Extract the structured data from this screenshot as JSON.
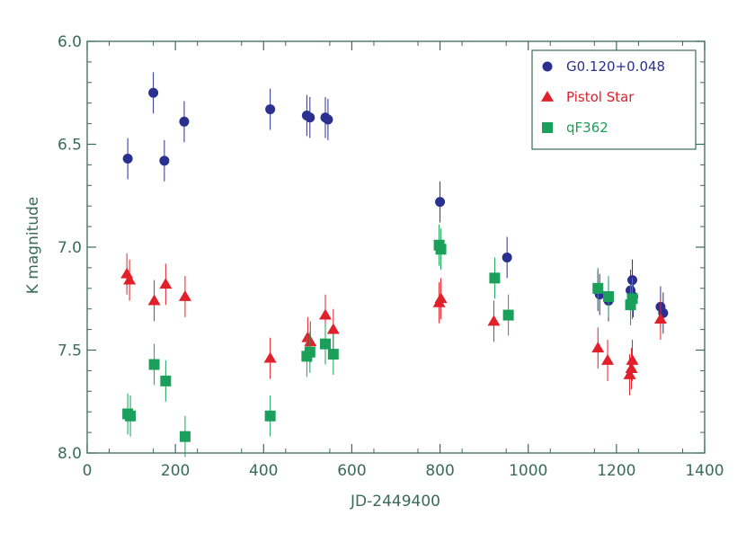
{
  "chart_data": {
    "type": "scatter",
    "xlabel": "JD-2449400",
    "ylabel": "K magnitude",
    "xlim": [
      0,
      1400
    ],
    "ylim": [
      6.0,
      8.0
    ],
    "y_inverted": true,
    "x_ticks": [
      0,
      200,
      400,
      600,
      800,
      1000,
      1200,
      1400
    ],
    "y_ticks": [
      "6.0",
      "6.5",
      "7.0",
      "7.5",
      "8.0"
    ],
    "legend_position": "top-right",
    "axis_color": "#3a6b5a",
    "series": [
      {
        "name": "G0.120+0.048",
        "marker": "circle",
        "color": "#2b2f8f",
        "points": [
          {
            "x": 92,
            "y": 6.57,
            "err": 0.1
          },
          {
            "x": 150,
            "y": 6.25,
            "err": 0.1
          },
          {
            "x": 175,
            "y": 6.58,
            "err": 0.1
          },
          {
            "x": 220,
            "y": 6.39,
            "err": 0.1
          },
          {
            "x": 415,
            "y": 6.33,
            "err": 0.1
          },
          {
            "x": 498,
            "y": 6.36,
            "err": 0.1
          },
          {
            "x": 505,
            "y": 6.37,
            "err": 0.1
          },
          {
            "x": 540,
            "y": 6.37,
            "err": 0.1
          },
          {
            "x": 546,
            "y": 6.38,
            "err": 0.1
          },
          {
            "x": 800,
            "y": 6.78,
            "err": 0.1
          },
          {
            "x": 952,
            "y": 7.05,
            "err": 0.1
          },
          {
            "x": 1158,
            "y": 7.21,
            "err": 0.1
          },
          {
            "x": 1162,
            "y": 7.23,
            "err": 0.1
          },
          {
            "x": 1182,
            "y": 7.26,
            "err": 0.1
          },
          {
            "x": 1232,
            "y": 7.21,
            "err": 0.1
          },
          {
            "x": 1236,
            "y": 7.16,
            "err": 0.1
          },
          {
            "x": 1238,
            "y": 7.24,
            "err": 0.1
          },
          {
            "x": 1300,
            "y": 7.29,
            "err": 0.1
          },
          {
            "x": 1306,
            "y": 7.32,
            "err": 0.1
          }
        ]
      },
      {
        "name": "Pistol Star",
        "marker": "triangle",
        "color": "#e0202a",
        "points": [
          {
            "x": 90,
            "y": 7.13,
            "err": 0.1
          },
          {
            "x": 96,
            "y": 7.16,
            "err": 0.1
          },
          {
            "x": 152,
            "y": 7.26,
            "err": 0.1
          },
          {
            "x": 178,
            "y": 7.18,
            "err": 0.1
          },
          {
            "x": 222,
            "y": 7.24,
            "err": 0.1
          },
          {
            "x": 415,
            "y": 7.54,
            "err": 0.1
          },
          {
            "x": 500,
            "y": 7.44,
            "err": 0.1
          },
          {
            "x": 506,
            "y": 7.46,
            "err": 0.1
          },
          {
            "x": 540,
            "y": 7.33,
            "err": 0.1
          },
          {
            "x": 558,
            "y": 7.4,
            "err": 0.1
          },
          {
            "x": 798,
            "y": 7.27,
            "err": 0.1
          },
          {
            "x": 802,
            "y": 7.25,
            "err": 0.1
          },
          {
            "x": 922,
            "y": 7.36,
            "err": 0.1
          },
          {
            "x": 1158,
            "y": 7.49,
            "err": 0.1
          },
          {
            "x": 1180,
            "y": 7.55,
            "err": 0.1
          },
          {
            "x": 1230,
            "y": 7.62,
            "err": 0.1
          },
          {
            "x": 1234,
            "y": 7.59,
            "err": 0.1
          },
          {
            "x": 1236,
            "y": 7.55,
            "err": 0.1
          },
          {
            "x": 1300,
            "y": 7.35,
            "err": 0.1
          }
        ]
      },
      {
        "name": "qF362",
        "marker": "square",
        "color": "#1aa05a",
        "points": [
          {
            "x": 92,
            "y": 7.81,
            "err": 0.1
          },
          {
            "x": 98,
            "y": 7.82,
            "err": 0.1
          },
          {
            "x": 152,
            "y": 7.57,
            "err": 0.1
          },
          {
            "x": 178,
            "y": 7.65,
            "err": 0.1
          },
          {
            "x": 222,
            "y": 7.92,
            "err": 0.1
          },
          {
            "x": 415,
            "y": 7.82,
            "err": 0.1
          },
          {
            "x": 498,
            "y": 7.53,
            "err": 0.1
          },
          {
            "x": 505,
            "y": 7.51,
            "err": 0.1
          },
          {
            "x": 540,
            "y": 7.47,
            "err": 0.1
          },
          {
            "x": 558,
            "y": 7.52,
            "err": 0.1
          },
          {
            "x": 798,
            "y": 6.99,
            "err": 0.1
          },
          {
            "x": 802,
            "y": 7.01,
            "err": 0.1
          },
          {
            "x": 924,
            "y": 7.15,
            "err": 0.1
          },
          {
            "x": 955,
            "y": 7.33,
            "err": 0.1
          },
          {
            "x": 1158,
            "y": 7.2,
            "err": 0.1
          },
          {
            "x": 1182,
            "y": 7.24,
            "err": 0.1
          },
          {
            "x": 1232,
            "y": 7.28,
            "err": 0.1
          },
          {
            "x": 1236,
            "y": 7.25,
            "err": 0.1
          }
        ]
      }
    ]
  }
}
